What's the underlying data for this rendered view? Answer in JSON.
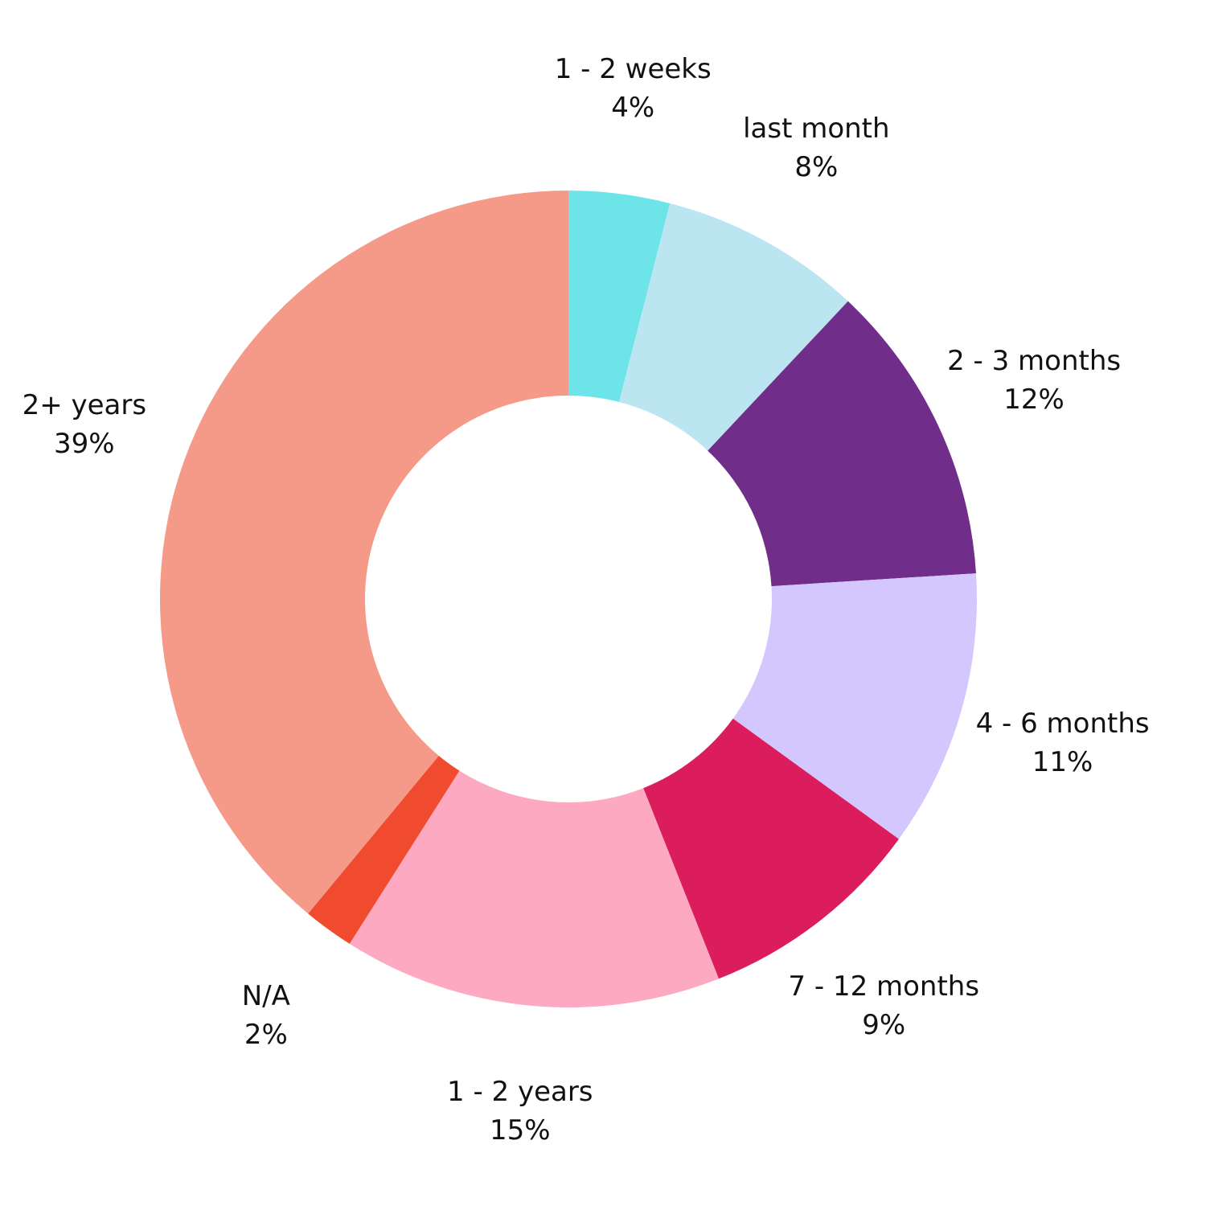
{
  "chart_data": {
    "type": "pie",
    "title": "",
    "legend": "none",
    "slices": [
      {
        "label": "1 - 2 weeks",
        "value": 4,
        "value_label": "4%",
        "color": "#6de5e8"
      },
      {
        "label": "last month",
        "value": 8,
        "value_label": "8%",
        "color": "#bbe5f0"
      },
      {
        "label": "2 - 3 months",
        "value": 12,
        "value_label": "12%",
        "color": "#712d8a"
      },
      {
        "label": "4 - 6 months",
        "value": 11,
        "value_label": "11%",
        "color": "#d3c7fe"
      },
      {
        "label": "7 - 12 months",
        "value": 9,
        "value_label": "9%",
        "color": "#db1d5d"
      },
      {
        "label": "1 - 2 years",
        "value": 15,
        "value_label": "15%",
        "color": "#fea9c2"
      },
      {
        "label": "N/A",
        "value": 2,
        "value_label": "2%",
        "color": "#f04b2f"
      },
      {
        "label": "2+ years",
        "value": 39,
        "value_label": "39%",
        "color": "#f59a88"
      }
    ]
  }
}
